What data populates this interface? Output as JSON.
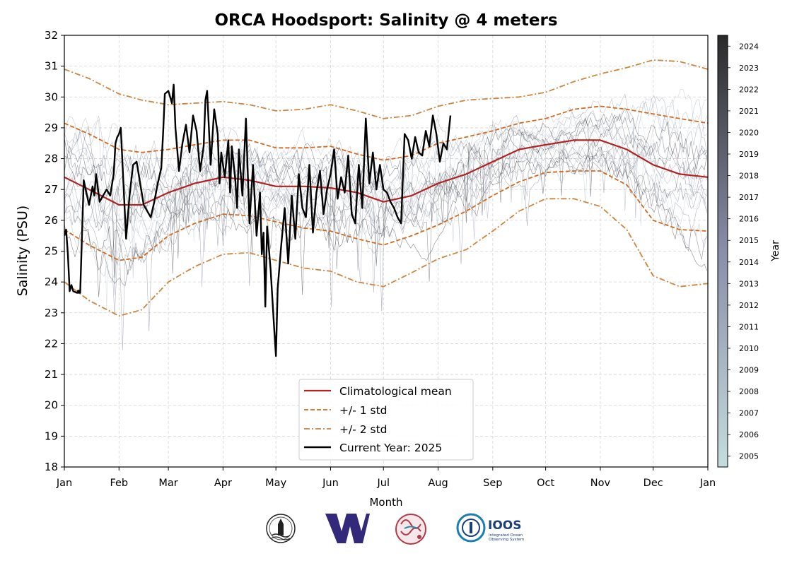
{
  "chart_data": {
    "type": "line",
    "title": "ORCA Hoodsport: Salinity @ 4 meters",
    "xlabel": "Month",
    "ylabel": "Salinity (PSU)",
    "ylim": [
      18,
      32
    ],
    "yticks": [
      18,
      19,
      20,
      21,
      22,
      23,
      24,
      25,
      26,
      27,
      28,
      29,
      30,
      31,
      32
    ],
    "x_unit": "day of year",
    "xlim": [
      1,
      366
    ],
    "month_ticks": {
      "labels": [
        "Jan",
        "Feb",
        "Mar",
        "Apr",
        "May",
        "Jun",
        "Jul",
        "Aug",
        "Sep",
        "Oct",
        "Nov",
        "Dec",
        "Jan"
      ],
      "days": [
        1,
        32,
        60,
        91,
        121,
        152,
        182,
        213,
        244,
        274,
        305,
        335,
        366
      ]
    },
    "grid": true,
    "legend": {
      "placement": "bottom-center",
      "entries": [
        "Climatological mean",
        "+/- 1 std",
        "+/- 2 std",
        "Current Year: 2025"
      ]
    },
    "colors": {
      "mean": "#b22222",
      "std1": "#d2691e",
      "std2": "#cd853f",
      "current": "#000000",
      "cmap_low": "#c5dcdc",
      "cmap_mid": "#8a8ea8",
      "cmap_high": "#2a2a2a"
    },
    "colorbar": {
      "label": "Year",
      "years": [
        "2005",
        "2006",
        "2007",
        "2008",
        "2009",
        "2010",
        "2011",
        "2012",
        "2013",
        "2014",
        "2015",
        "2016",
        "2017",
        "2018",
        "2019",
        "2020",
        "2021",
        "2022",
        "2023",
        "2024"
      ]
    },
    "series": [
      {
        "name": "Climatological mean",
        "style": "solid",
        "x": [
          1,
          15,
          32,
          45,
          60,
          75,
          91,
          106,
          121,
          137,
          152,
          167,
          182,
          198,
          213,
          229,
          244,
          259,
          274,
          290,
          305,
          320,
          335,
          350,
          366
        ],
        "y": [
          27.4,
          27.0,
          26.5,
          26.5,
          26.9,
          27.2,
          27.4,
          27.3,
          27.1,
          27.1,
          27.05,
          26.9,
          26.6,
          26.8,
          27.2,
          27.5,
          27.9,
          28.3,
          28.45,
          28.6,
          28.6,
          28.3,
          27.8,
          27.5,
          27.4
        ]
      },
      {
        "name": "+1 std",
        "style": "dashed",
        "x": [
          1,
          15,
          32,
          45,
          60,
          75,
          91,
          106,
          121,
          137,
          152,
          167,
          182,
          198,
          213,
          229,
          244,
          259,
          274,
          290,
          305,
          320,
          335,
          350,
          366
        ],
        "y": [
          29.15,
          28.8,
          28.3,
          28.2,
          28.3,
          28.45,
          28.6,
          28.6,
          28.35,
          28.35,
          28.4,
          28.15,
          27.95,
          28.1,
          28.5,
          28.7,
          28.9,
          29.15,
          29.3,
          29.6,
          29.7,
          29.6,
          29.45,
          29.3,
          29.15
        ]
      },
      {
        "name": "-1 std",
        "style": "dashed",
        "x": [
          1,
          15,
          32,
          45,
          60,
          75,
          91,
          106,
          121,
          137,
          152,
          167,
          182,
          198,
          213,
          229,
          244,
          259,
          274,
          290,
          305,
          320,
          335,
          350,
          366
        ],
        "y": [
          25.7,
          25.2,
          24.7,
          24.8,
          25.5,
          25.9,
          26.2,
          26.15,
          25.95,
          25.75,
          25.65,
          25.4,
          25.2,
          25.5,
          25.85,
          26.3,
          26.8,
          27.25,
          27.55,
          27.6,
          27.6,
          27.15,
          26.0,
          25.7,
          25.65
        ]
      },
      {
        "name": "+2 std",
        "style": "dashdot",
        "x": [
          1,
          15,
          32,
          45,
          60,
          75,
          91,
          106,
          121,
          137,
          152,
          167,
          182,
          198,
          213,
          229,
          244,
          259,
          274,
          290,
          305,
          320,
          335,
          350,
          366
        ],
        "y": [
          30.9,
          30.6,
          30.1,
          29.9,
          29.75,
          29.8,
          29.85,
          29.75,
          29.55,
          29.6,
          29.75,
          29.55,
          29.3,
          29.4,
          29.7,
          29.9,
          29.95,
          30.0,
          30.15,
          30.5,
          30.75,
          30.95,
          31.2,
          31.15,
          30.9
        ]
      },
      {
        "name": "-2 std",
        "style": "dashdot",
        "x": [
          1,
          15,
          32,
          45,
          60,
          75,
          91,
          106,
          121,
          137,
          152,
          167,
          182,
          198,
          213,
          229,
          244,
          259,
          274,
          290,
          305,
          320,
          335,
          350,
          366
        ],
        "y": [
          24.0,
          23.4,
          22.9,
          23.1,
          24.0,
          24.5,
          24.9,
          24.95,
          24.7,
          24.45,
          24.35,
          24.0,
          23.85,
          24.3,
          24.75,
          25.05,
          25.65,
          26.3,
          26.7,
          26.7,
          26.45,
          25.7,
          24.2,
          23.85,
          23.95
        ]
      },
      {
        "name": "Current Year: 2025",
        "style": "solid",
        "x": [
          1,
          2,
          3,
          4,
          5,
          6,
          8,
          10,
          12,
          15,
          17,
          18,
          19,
          21,
          23,
          25,
          27,
          29,
          30,
          31,
          32,
          33,
          34,
          36,
          38,
          40,
          42,
          44,
          46,
          48,
          50,
          52,
          54,
          56,
          57,
          58,
          60,
          62,
          63,
          64,
          66,
          68,
          70,
          72,
          74,
          76,
          78,
          80,
          81,
          82,
          84,
          86,
          88,
          89,
          90,
          92,
          94,
          95,
          96,
          98,
          99,
          100,
          102,
          104,
          106,
          108,
          110,
          112,
          113,
          114,
          115,
          116,
          118,
          120,
          121,
          122,
          124,
          126,
          128,
          130,
          132,
          134,
          136,
          138,
          140,
          142,
          144,
          146,
          148,
          150,
          152,
          154,
          156,
          158,
          160,
          162,
          164,
          166,
          168,
          170,
          172,
          174,
          176,
          178,
          180,
          182,
          184,
          186,
          188,
          190,
          192,
          194,
          196,
          198,
          200,
          202,
          204,
          206,
          208,
          210,
          212,
          214,
          216,
          218,
          220
        ],
        "y": [
          25.5,
          25.7,
          24.9,
          23.7,
          23.9,
          23.7,
          23.65,
          23.65,
          27.3,
          26.5,
          27.1,
          26.8,
          27.5,
          26.6,
          26.8,
          27.0,
          26.8,
          27.5,
          28.5,
          28.7,
          28.8,
          29.0,
          27.8,
          25.4,
          26.8,
          27.8,
          27.9,
          27.2,
          26.5,
          26.3,
          26.1,
          26.6,
          27.2,
          27.7,
          28.8,
          30.1,
          30.2,
          29.8,
          30.4,
          29.0,
          27.6,
          28.5,
          29.1,
          28.2,
          29.4,
          28.9,
          27.6,
          28.4,
          29.9,
          30.2,
          27.8,
          29.6,
          28.8,
          27.2,
          28.2,
          27.4,
          28.6,
          26.9,
          28.4,
          27.3,
          26.4,
          28.3,
          26.8,
          29.3,
          25.9,
          27.8,
          25.5,
          26.9,
          24.9,
          25.6,
          23.2,
          25.8,
          24.4,
          22.5,
          21.6,
          23.8,
          25.2,
          26.4,
          24.6,
          26.8,
          25.4,
          27.5,
          26.4,
          26.1,
          27.8,
          25.6,
          26.9,
          27.6,
          26.2,
          27.0,
          27.5,
          28.3,
          26.7,
          27.4,
          26.9,
          28.1,
          26.2,
          25.9,
          27.8,
          26.4,
          29.3,
          27.2,
          28.2,
          27.0,
          27.8,
          27.0,
          26.9,
          26.6,
          26.4,
          26.1,
          25.9,
          28.8,
          28.6,
          28.0,
          28.7,
          28.2,
          28.1,
          28.9,
          28.4,
          29.4,
          28.8,
          27.9,
          28.5,
          28.3,
          29.4
        ]
      },
      {
        "name": "Current Year: 2025 (isolated points)",
        "style": "points",
        "x": [
          9
        ],
        "y": [
          23.7
        ]
      }
    ]
  }
}
